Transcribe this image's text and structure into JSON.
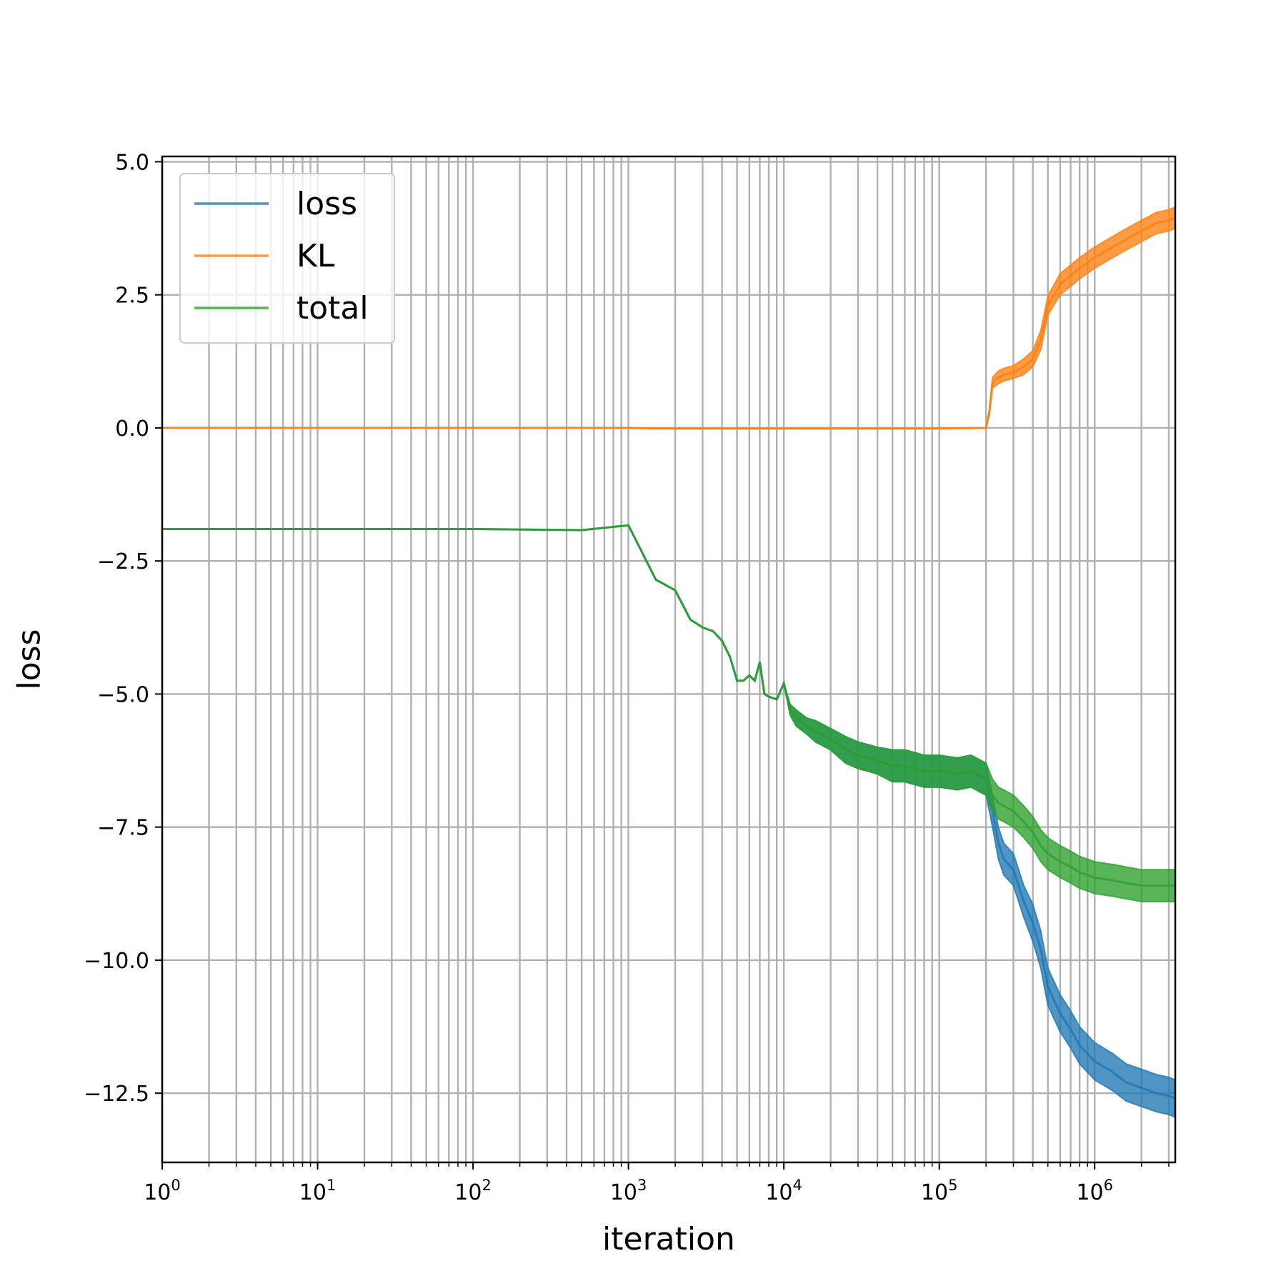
{
  "chart_data": {
    "type": "line",
    "title": "",
    "xlabel": "iteration",
    "ylabel": "loss",
    "x_scale": "log",
    "xlim": [
      1,
      3300000
    ],
    "ylim": [
      -13.8,
      5.1
    ],
    "grid": "on (major and minor x, major y)",
    "legend_position": "upper-left",
    "x_ticks": [
      {
        "value": 1,
        "base": "10",
        "exp": "0"
      },
      {
        "value": 10,
        "base": "10",
        "exp": "1"
      },
      {
        "value": 100,
        "base": "10",
        "exp": "2"
      },
      {
        "value": 1000,
        "base": "10",
        "exp": "3"
      },
      {
        "value": 10000,
        "base": "10",
        "exp": "4"
      },
      {
        "value": 100000,
        "base": "10",
        "exp": "5"
      },
      {
        "value": 1000000,
        "base": "10",
        "exp": "6"
      }
    ],
    "y_ticks": [
      {
        "value": 5.0,
        "label": "5.0"
      },
      {
        "value": 2.5,
        "label": "2.5"
      },
      {
        "value": 0.0,
        "label": "0.0"
      },
      {
        "value": -2.5,
        "label": "−2.5"
      },
      {
        "value": -5.0,
        "label": "−5.0"
      },
      {
        "value": -7.5,
        "label": "−7.5"
      },
      {
        "value": -10.0,
        "label": "−10.0"
      },
      {
        "value": -12.5,
        "label": "−12.5"
      }
    ],
    "series": [
      {
        "name": "loss",
        "color": "#1f77b4",
        "x": [
          1,
          10,
          100,
          500,
          1000,
          1500,
          2000,
          2500,
          3000,
          3500,
          4000,
          4500,
          5000,
          5500,
          6000,
          6500,
          7000,
          7500,
          8000,
          9000,
          10000,
          11000,
          12000,
          14000,
          16000,
          20000,
          25000,
          30000,
          40000,
          50000,
          60000,
          80000,
          100000,
          130000,
          160000,
          200000,
          220000,
          240000,
          260000,
          300000,
          350000,
          400000,
          450000,
          500000,
          600000,
          700000,
          800000,
          1000000,
          1300000,
          1600000,
          2000000,
          2500000,
          3000000,
          3300000
        ],
        "y": [
          -1.9,
          -1.9,
          -1.9,
          -1.92,
          -1.83,
          -2.85,
          -3.05,
          -3.6,
          -3.75,
          -3.82,
          -4.0,
          -4.3,
          -4.75,
          -4.75,
          -4.65,
          -4.75,
          -4.4,
          -5.0,
          -5.05,
          -5.1,
          -4.8,
          -5.3,
          -5.45,
          -5.6,
          -5.7,
          -5.85,
          -6.05,
          -6.15,
          -6.25,
          -6.35,
          -6.35,
          -6.45,
          -6.45,
          -6.5,
          -6.45,
          -6.6,
          -7.2,
          -7.8,
          -8.1,
          -8.3,
          -8.9,
          -9.3,
          -9.8,
          -10.5,
          -11.0,
          -11.3,
          -11.6,
          -11.9,
          -12.1,
          -12.3,
          -12.4,
          -12.5,
          -12.55,
          -12.6
        ],
        "band": [
          0,
          0,
          0,
          0,
          0,
          0,
          0,
          0,
          0,
          0,
          0,
          0,
          0,
          0,
          0,
          0,
          0,
          0,
          0,
          0,
          0,
          0.1,
          0.15,
          0.15,
          0.2,
          0.2,
          0.25,
          0.25,
          0.25,
          0.3,
          0.3,
          0.3,
          0.3,
          0.3,
          0.3,
          0.3,
          0.3,
          0.3,
          0.3,
          0.3,
          0.3,
          0.35,
          0.35,
          0.35,
          0.35,
          0.35,
          0.35,
          0.35,
          0.35,
          0.35,
          0.35,
          0.35,
          0.35,
          0.35
        ]
      },
      {
        "name": "KL",
        "color": "#ff7f0e",
        "x": [
          1,
          10,
          100,
          500,
          1000,
          1500,
          3000,
          10000,
          100000,
          200000,
          210000,
          220000,
          240000,
          260000,
          300000,
          350000,
          400000,
          450000,
          500000,
          600000,
          800000,
          1000000,
          1500000,
          2000000,
          2500000,
          3000000,
          3300000
        ],
        "y": [
          0.0,
          0.0,
          0.0,
          0.0,
          0.0,
          -0.01,
          -0.01,
          -0.01,
          -0.01,
          0.0,
          0.3,
          0.85,
          0.95,
          1.0,
          1.05,
          1.15,
          1.3,
          1.65,
          2.3,
          2.7,
          3.0,
          3.2,
          3.5,
          3.7,
          3.85,
          3.9,
          3.95
        ],
        "band": [
          0,
          0,
          0,
          0,
          0,
          0,
          0,
          0,
          0,
          0,
          0.05,
          0.1,
          0.12,
          0.12,
          0.12,
          0.15,
          0.15,
          0.18,
          0.18,
          0.2,
          0.2,
          0.2,
          0.2,
          0.2,
          0.2,
          0.2,
          0.2
        ]
      },
      {
        "name": "total",
        "color": "#2ca02c",
        "x": [
          1,
          10,
          100,
          500,
          1000,
          1500,
          2000,
          2500,
          3000,
          3500,
          4000,
          4500,
          5000,
          5500,
          6000,
          6500,
          7000,
          7500,
          8000,
          9000,
          10000,
          11000,
          12000,
          14000,
          16000,
          20000,
          25000,
          30000,
          40000,
          50000,
          60000,
          80000,
          100000,
          130000,
          160000,
          200000,
          220000,
          240000,
          260000,
          300000,
          350000,
          400000,
          450000,
          500000,
          600000,
          700000,
          800000,
          1000000,
          1300000,
          1600000,
          2000000,
          2500000,
          3000000,
          3300000
        ],
        "y": [
          -1.9,
          -1.9,
          -1.9,
          -1.92,
          -1.83,
          -2.85,
          -3.05,
          -3.6,
          -3.75,
          -3.82,
          -4.0,
          -4.3,
          -4.75,
          -4.75,
          -4.65,
          -4.75,
          -4.4,
          -5.0,
          -5.05,
          -5.1,
          -4.8,
          -5.3,
          -5.45,
          -5.6,
          -5.7,
          -5.85,
          -6.05,
          -6.15,
          -6.25,
          -6.35,
          -6.35,
          -6.45,
          -6.45,
          -6.5,
          -6.45,
          -6.6,
          -6.9,
          -7.05,
          -7.1,
          -7.2,
          -7.4,
          -7.6,
          -7.85,
          -8.0,
          -8.15,
          -8.25,
          -8.35,
          -8.45,
          -8.5,
          -8.55,
          -8.6,
          -8.6,
          -8.6,
          -8.6
        ],
        "band": [
          0,
          0,
          0,
          0,
          0,
          0,
          0,
          0,
          0,
          0,
          0,
          0,
          0,
          0,
          0,
          0,
          0,
          0,
          0,
          0,
          0,
          0.1,
          0.15,
          0.15,
          0.2,
          0.2,
          0.25,
          0.25,
          0.25,
          0.3,
          0.3,
          0.3,
          0.3,
          0.3,
          0.3,
          0.3,
          0.3,
          0.3,
          0.3,
          0.3,
          0.3,
          0.3,
          0.3,
          0.3,
          0.3,
          0.3,
          0.3,
          0.3,
          0.3,
          0.3,
          0.3,
          0.3,
          0.3,
          0.3
        ]
      }
    ]
  }
}
